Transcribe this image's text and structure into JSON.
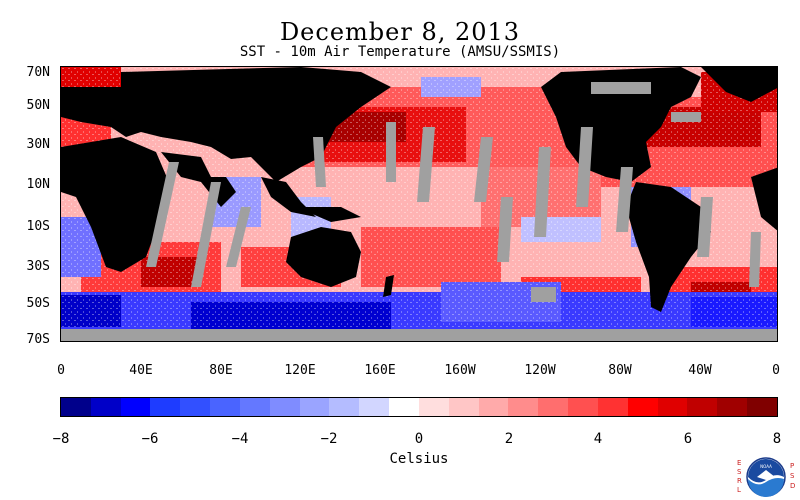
{
  "header": {
    "title": "December 8, 2013",
    "subtitle": "SST - 10m Air Temperature (AMSU/SSMIS)"
  },
  "map": {
    "lat_labels": [
      "70N",
      "50N",
      "30N",
      "10N",
      "10S",
      "30S",
      "50S",
      "70S"
    ],
    "lon_labels": [
      "0",
      "40E",
      "80E",
      "120E",
      "160E",
      "160W",
      "120W",
      "80W",
      "40W",
      "0"
    ],
    "colors": {
      "land": "#000000",
      "missing": "#a0a0a0",
      "warm": "#e8000c",
      "cold": "#1e1eff"
    }
  },
  "colorbar": {
    "tick_labels": [
      "−8",
      "−6",
      "−4",
      "−2",
      "0",
      "2",
      "4",
      "6",
      "8"
    ],
    "unit_label": "Celsius",
    "colors": [
      "#00008b",
      "#0000c8",
      "#0000ff",
      "#1e3cff",
      "#3250ff",
      "#4a64ff",
      "#6478ff",
      "#7f8cff",
      "#9aa4ff",
      "#b4bcff",
      "#d2d6ff",
      "#ffffff",
      "#ffdede",
      "#ffc6c6",
      "#ffaaaa",
      "#ff8c8c",
      "#ff6e6e",
      "#ff5050",
      "#ff3232",
      "#ff0000",
      "#e00000",
      "#c00000",
      "#a00000",
      "#800000"
    ]
  },
  "logo": {
    "left_letters": "ESRL",
    "right_letters": "PSD",
    "center_text": "NOAA"
  }
}
